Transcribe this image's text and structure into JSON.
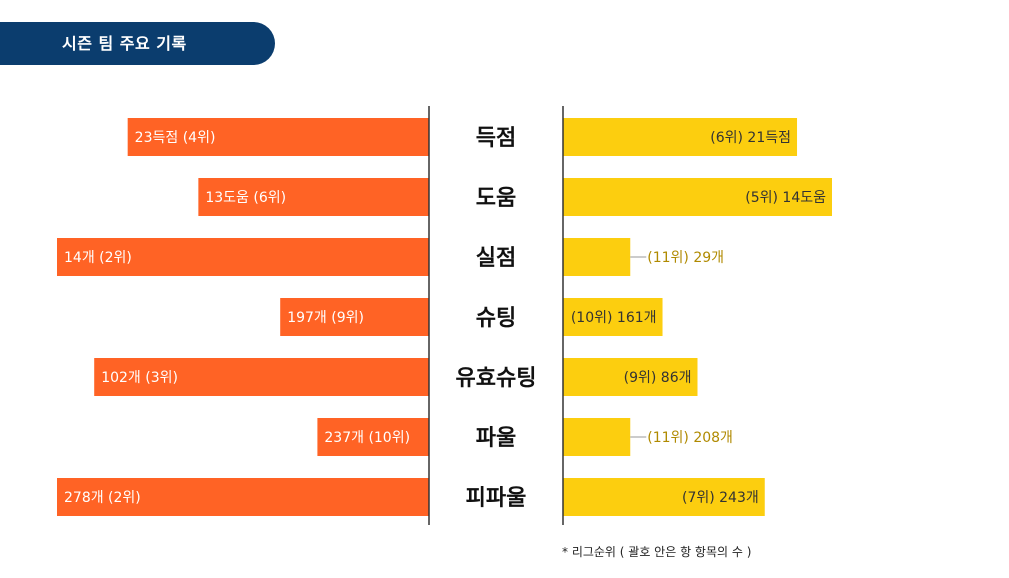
{
  "header": {
    "title": "시즌 팀 주요 기록"
  },
  "chart_data": {
    "type": "bar",
    "categories": [
      "득점",
      "도움",
      "실점",
      "슈팅",
      "유효슈팅",
      "파울",
      "피파울"
    ],
    "series": [
      {
        "values": [
          23,
          13,
          14,
          197,
          102,
          237,
          278
        ],
        "ranks": [
          4,
          6,
          2,
          9,
          3,
          10,
          2
        ],
        "labels": [
          "23득점 (4위)",
          "13도움 (6위)",
          "14개 (2위)",
          "197개 (9위)",
          "102개 (3위)",
          "237개 (10위)",
          "278개 (2위)"
        ],
        "relative_length": [
          0.81,
          0.62,
          1.0,
          0.4,
          0.9,
          0.3,
          1.0
        ]
      },
      {
        "values": [
          21,
          14,
          29,
          161,
          86,
          208,
          243
        ],
        "ranks": [
          6,
          5,
          11,
          10,
          9,
          11,
          7
        ],
        "labels": [
          "(6위) 21득점",
          "(5위) 14도움",
          "(11위) 29개",
          "(10위) 161개",
          "(9위) 86개",
          "(11위) 208개",
          "(7위) 243개"
        ],
        "relative_length": [
          0.87,
          1.0,
          0.25,
          0.37,
          0.5,
          0.25,
          0.75
        ]
      }
    ],
    "colors": {
      "left": "#ff6325",
      "right": "#fcce0f",
      "outside_label": "#b08a00",
      "axis": "#333333"
    },
    "footnote": "* 리그순위 ( 괄호 안은 항 항목의 수 )"
  }
}
